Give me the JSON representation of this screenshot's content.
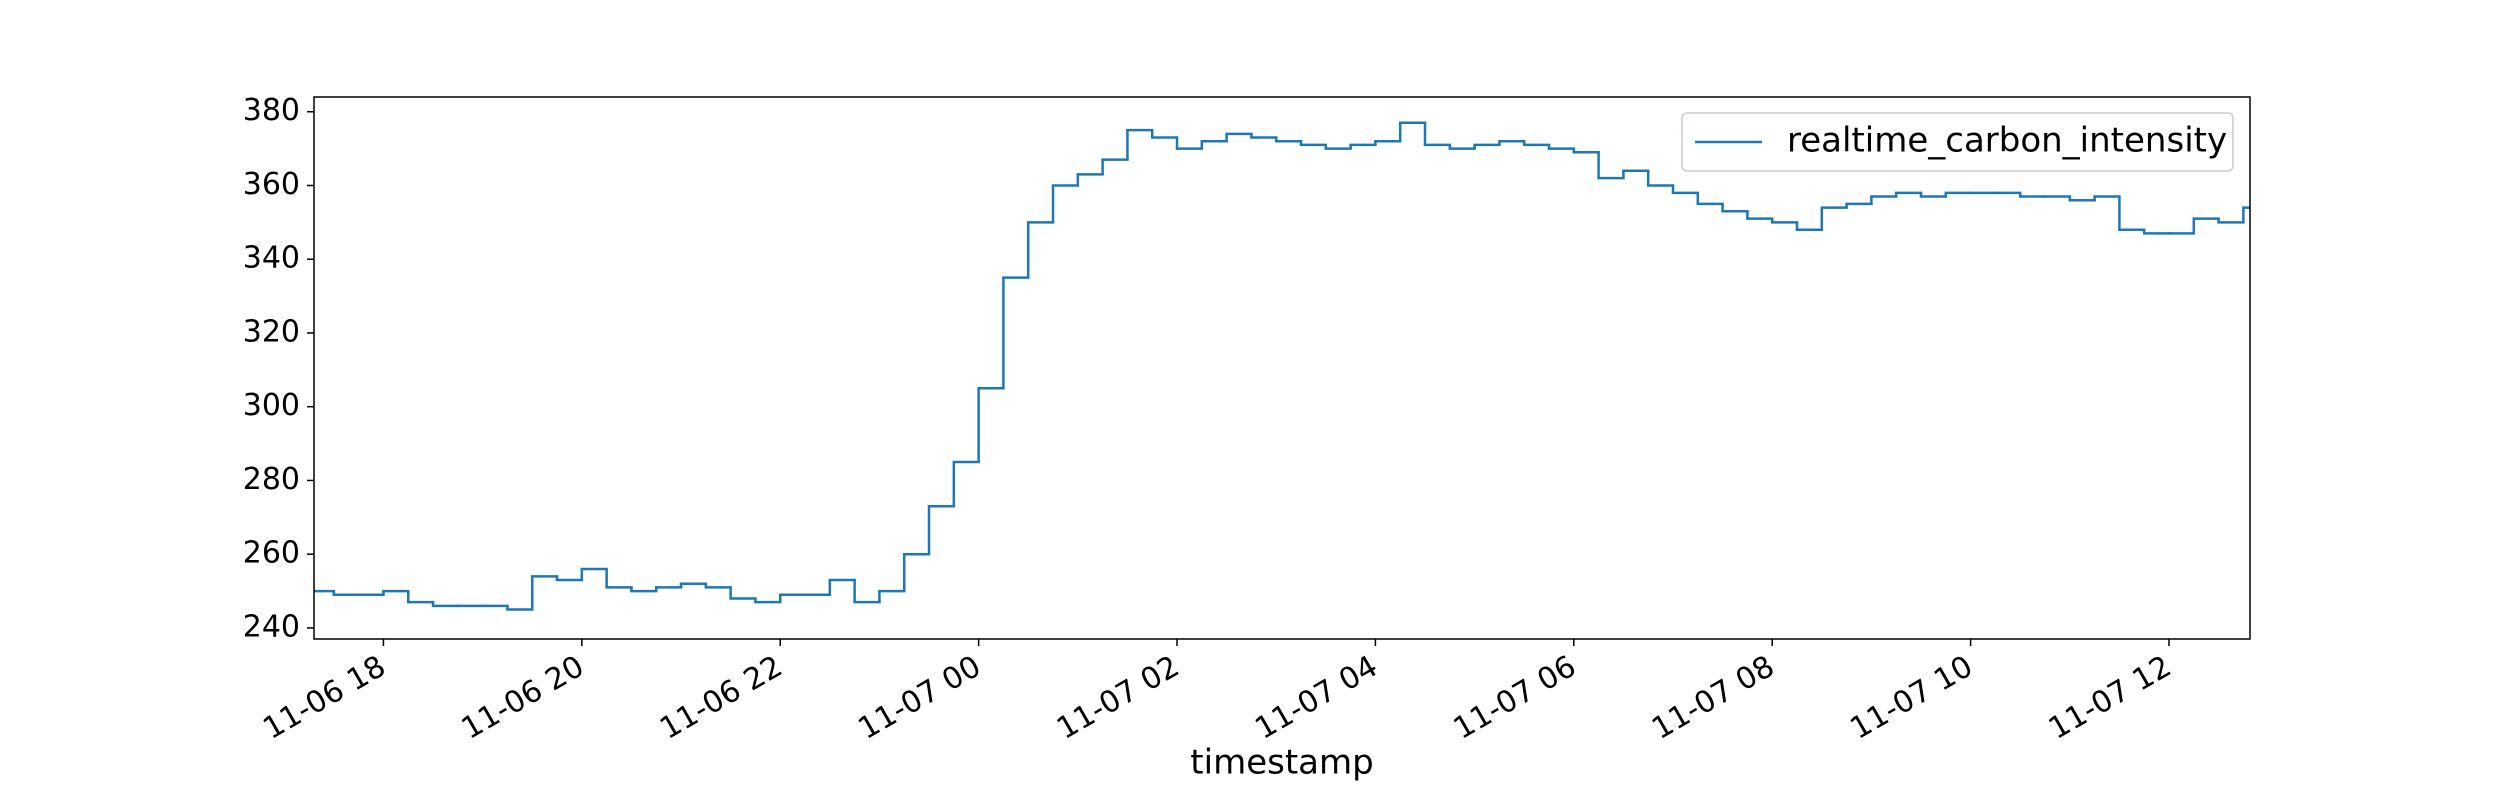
{
  "chart_data": {
    "type": "step",
    "xlabel": "timestamp",
    "x": [
      "11-06 17:15",
      "11-06 17:30",
      "11-06 17:45",
      "11-06 18:00",
      "11-06 18:15",
      "11-06 18:30",
      "11-06 18:45",
      "11-06 19:00",
      "11-06 19:15",
      "11-06 19:30",
      "11-06 19:45",
      "11-06 20:00",
      "11-06 20:15",
      "11-06 20:30",
      "11-06 20:45",
      "11-06 21:00",
      "11-06 21:15",
      "11-06 21:30",
      "11-06 21:45",
      "11-06 22:00",
      "11-06 22:15",
      "11-06 22:30",
      "11-06 22:45",
      "11-06 23:00",
      "11-06 23:15",
      "11-06 23:30",
      "11-06 23:45",
      "11-07 00:00",
      "11-07 00:15",
      "11-07 00:30",
      "11-07 00:45",
      "11-07 01:00",
      "11-07 01:15",
      "11-07 01:30",
      "11-07 01:45",
      "11-07 02:00",
      "11-07 02:15",
      "11-07 02:30",
      "11-07 02:45",
      "11-07 03:00",
      "11-07 03:15",
      "11-07 03:30",
      "11-07 03:45",
      "11-07 04:00",
      "11-07 04:15",
      "11-07 04:30",
      "11-07 04:45",
      "11-07 05:00",
      "11-07 05:15",
      "11-07 05:30",
      "11-07 05:45",
      "11-07 06:00",
      "11-07 06:15",
      "11-07 06:30",
      "11-07 06:45",
      "11-07 07:00",
      "11-07 07:15",
      "11-07 07:30",
      "11-07 07:45",
      "11-07 08:00",
      "11-07 08:15",
      "11-07 08:30",
      "11-07 08:45",
      "11-07 09:00",
      "11-07 09:15",
      "11-07 09:30",
      "11-07 09:45",
      "11-07 10:00",
      "11-07 10:15",
      "11-07 10:30",
      "11-07 10:45",
      "11-07 11:00",
      "11-07 11:15",
      "11-07 11:30",
      "11-07 11:45",
      "11-07 12:00",
      "11-07 12:15",
      "11-07 12:30",
      "11-07 12:45"
    ],
    "series": [
      {
        "name": "realtime_carbon_intensity",
        "color": "#1f77b4",
        "values": [
          250,
          249,
          249,
          250,
          247,
          246,
          246,
          246,
          245,
          254,
          253,
          256,
          251,
          250,
          251,
          252,
          251,
          248,
          247,
          249,
          249,
          253,
          247,
          250,
          260,
          273,
          285,
          305,
          335,
          350,
          360,
          363,
          367,
          375,
          373,
          370,
          372,
          374,
          373,
          372,
          371,
          370,
          371,
          372,
          377,
          371,
          370,
          371,
          372,
          371,
          370,
          369,
          362,
          364,
          360,
          358,
          355,
          353,
          351,
          350,
          348,
          354,
          355,
          357,
          358,
          357,
          358,
          358,
          358,
          357,
          357,
          356,
          357,
          348,
          347,
          347,
          351,
          350,
          354
        ]
      }
    ],
    "xlim": [
      "11-06 17:18",
      "11-07 12:49"
    ],
    "xticks": [
      "11-06 18",
      "11-06 20",
      "11-06 22",
      "11-07 00",
      "11-07 02",
      "11-07 04",
      "11-07 06",
      "11-07 08",
      "11-07 10",
      "11-07 12"
    ],
    "ylim": [
      237,
      384
    ],
    "yticks": [
      240,
      260,
      280,
      300,
      320,
      340,
      360,
      380
    ],
    "legend": "upper right"
  }
}
